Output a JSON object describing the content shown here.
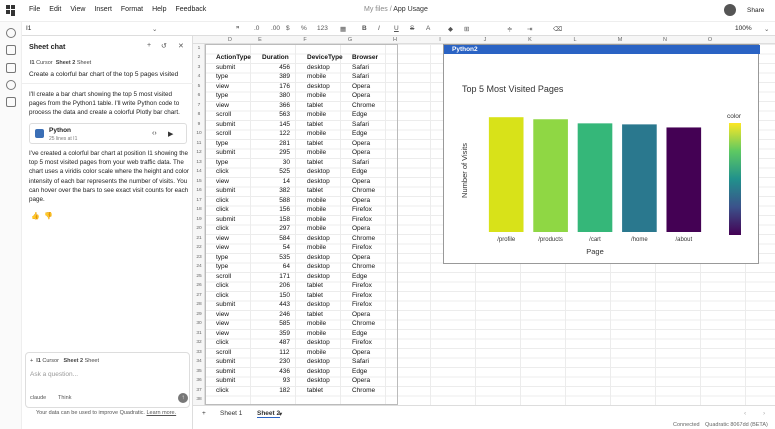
{
  "menu": [
    "File",
    "Edit",
    "View",
    "Insert",
    "Format",
    "Help",
    "Feedback"
  ],
  "doc": {
    "folder": "My files",
    "sep": "/",
    "title": "App Usage"
  },
  "share_label": "Share",
  "toolbar": {
    "cell_ref": "I1",
    "zoom": "100%",
    "fmt_num": "123"
  },
  "chat": {
    "title": "Sheet chat",
    "ctx_cursor_ref": "I1",
    "ctx_cursor": "Cursor",
    "ctx_sheet": "Sheet 2",
    "ctx_sheet_label": "Sheet",
    "user_message": "Create a colorful bar chart of the top 5 pages visited",
    "assistant_1": "I'll create a bar chart showing the top 5 most visited pages from the Python1 table. I'll write Python code to process the data and create a colorful Plotly bar chart.",
    "code_title": "Python",
    "code_sub": "25 lines at I1",
    "assistant_2": "I've created a colorful bar chart at position I1 showing the top 5 most visited pages from your web traffic data. The chart uses a viridis color scale where the height and color intensity of each bar represents the number of visits. You can hover over the bars to see exact visit counts for each page.",
    "composer_ctx_ref": "I1",
    "composer_ctx_cursor": "Cursor",
    "composer_ctx_sheet": "Sheet 2",
    "composer_ctx_sheet_label": "Sheet",
    "placeholder": "Ask a question...",
    "model": "claude",
    "think": "Think",
    "footnote_pre": "Your data can be used to improve Quadratic.",
    "footnote_link": "Learn more."
  },
  "columns": [
    "D",
    "E",
    "F",
    "G",
    "H",
    "I",
    "J",
    "K",
    "L",
    "M",
    "N",
    "O"
  ],
  "table": {
    "headers": [
      "ActionType",
      "Duration",
      "DeviceType",
      "Browser"
    ],
    "rows": [
      [
        "submit",
        "456",
        "desktop",
        "Safari"
      ],
      [
        "type",
        "389",
        "mobile",
        "Safari"
      ],
      [
        "view",
        "176",
        "desktop",
        "Opera"
      ],
      [
        "type",
        "380",
        "mobile",
        "Opera"
      ],
      [
        "view",
        "366",
        "tablet",
        "Chrome"
      ],
      [
        "scroll",
        "563",
        "mobile",
        "Edge"
      ],
      [
        "submit",
        "145",
        "tablet",
        "Safari"
      ],
      [
        "scroll",
        "122",
        "mobile",
        "Edge"
      ],
      [
        "type",
        "281",
        "tablet",
        "Opera"
      ],
      [
        "submit",
        "295",
        "mobile",
        "Opera"
      ],
      [
        "type",
        "30",
        "tablet",
        "Safari"
      ],
      [
        "click",
        "525",
        "desktop",
        "Edge"
      ],
      [
        "view",
        "14",
        "desktop",
        "Opera"
      ],
      [
        "submit",
        "382",
        "tablet",
        "Chrome"
      ],
      [
        "click",
        "588",
        "mobile",
        "Opera"
      ],
      [
        "click",
        "156",
        "mobile",
        "Firefox"
      ],
      [
        "submit",
        "158",
        "mobile",
        "Firefox"
      ],
      [
        "click",
        "297",
        "mobile",
        "Opera"
      ],
      [
        "view",
        "584",
        "desktop",
        "Chrome"
      ],
      [
        "view",
        "54",
        "mobile",
        "Firefox"
      ],
      [
        "type",
        "535",
        "desktop",
        "Opera"
      ],
      [
        "type",
        "64",
        "desktop",
        "Chrome"
      ],
      [
        "scroll",
        "171",
        "desktop",
        "Edge"
      ],
      [
        "click",
        "206",
        "tablet",
        "Firefox"
      ],
      [
        "click",
        "150",
        "tablet",
        "Firefox"
      ],
      [
        "submit",
        "443",
        "desktop",
        "Firefox"
      ],
      [
        "view",
        "246",
        "tablet",
        "Opera"
      ],
      [
        "view",
        "585",
        "mobile",
        "Chrome"
      ],
      [
        "view",
        "359",
        "mobile",
        "Edge"
      ],
      [
        "click",
        "487",
        "desktop",
        "Firefox"
      ],
      [
        "scroll",
        "112",
        "mobile",
        "Opera"
      ],
      [
        "submit",
        "230",
        "desktop",
        "Safari"
      ],
      [
        "submit",
        "436",
        "desktop",
        "Edge"
      ],
      [
        "submit",
        "93",
        "desktop",
        "Opera"
      ],
      [
        "click",
        "182",
        "tablet",
        "Chrome"
      ]
    ],
    "row_numbers": [
      1,
      2,
      3,
      4,
      5,
      6,
      7,
      8,
      9,
      10,
      11,
      12,
      13,
      14,
      15,
      16,
      17,
      18,
      19,
      20,
      21,
      22,
      23,
      24,
      25,
      26,
      27,
      28,
      29,
      30,
      31,
      32,
      33,
      34,
      35,
      36,
      37,
      38
    ]
  },
  "chart_label": "Python2",
  "chart_data": {
    "type": "bar",
    "title": "Top 5 Most Visited Pages",
    "xlabel": "Page",
    "ylabel": "Number of Visits",
    "categories": [
      "/profile",
      "/products",
      "/cart",
      "/home",
      "/about"
    ],
    "values": [
      11.2,
      11.0,
      10.6,
      10.5,
      10.2
    ],
    "colors": [
      "#d8e219",
      "#8fd744",
      "#35b779",
      "#2a788e",
      "#440154"
    ],
    "colorbar_label": "color",
    "ylim": [
      0,
      12
    ]
  },
  "sheets": {
    "tab1": "Sheet 1",
    "tab2": "Sheet 2"
  },
  "status": {
    "connection": "Connected",
    "version": "Quadratic 8067dd (BETA)"
  }
}
